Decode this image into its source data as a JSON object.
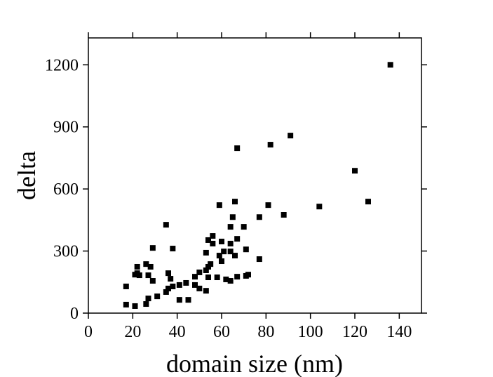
{
  "chart_data": {
    "type": "scatter",
    "x_label": "domain size (nm)",
    "y_label": "delta",
    "xlim": [
      0,
      150
    ],
    "ylim": [
      0,
      1330
    ],
    "xticks": [
      0,
      20,
      40,
      60,
      80,
      100,
      120,
      140
    ],
    "yticks": [
      0,
      300,
      600,
      900,
      1200
    ],
    "color": "#000000",
    "series": [
      {
        "name": "delta",
        "x": [
          136,
          91,
          82,
          67,
          120,
          126,
          104,
          88,
          81,
          77,
          66,
          59,
          65,
          70,
          64,
          67,
          64,
          56,
          54,
          56,
          60,
          61,
          64,
          53,
          71,
          59,
          60,
          66,
          77,
          35,
          38,
          29,
          26,
          28,
          22,
          22,
          21,
          23,
          27,
          29,
          36,
          37,
          38,
          41,
          44,
          48,
          50,
          48,
          50,
          54,
          55,
          53,
          54,
          58,
          62,
          64,
          67,
          72,
          71,
          53,
          35,
          36,
          41,
          45,
          31,
          27,
          26,
          17,
          17,
          21
        ],
        "values": [
          1200,
          858,
          814,
          797,
          688,
          539,
          515,
          475,
          522,
          464,
          539,
          522,
          464,
          417,
          417,
          359,
          336,
          373,
          353,
          336,
          346,
          298,
          298,
          292,
          308,
          278,
          251,
          278,
          261,
          427,
          312,
          315,
          237,
          224,
          224,
          193,
          186,
          183,
          183,
          156,
          193,
          166,
          129,
          136,
          146,
          176,
          197,
          136,
          119,
          224,
          237,
          207,
          173,
          173,
          163,
          156,
          176,
          186,
          180,
          108,
          102,
          119,
          64,
          64,
          81,
          71,
          44,
          129,
          41,
          34
        ]
      }
    ]
  }
}
